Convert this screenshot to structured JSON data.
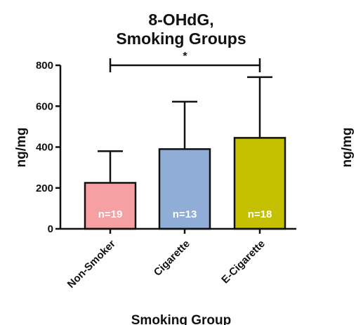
{
  "chart_data": {
    "type": "bar",
    "title_line1": "8-OHdG,",
    "title_line2": "Smoking Groups",
    "xlabel": "Smoking Group",
    "ylabel": "ng/mg",
    "right_partial_ylabel": "ng/mg",
    "ylim": [
      0,
      800
    ],
    "yticks": [
      0,
      200,
      400,
      600,
      800
    ],
    "ytick_labels": [
      "0",
      "200",
      "400",
      "600",
      "800"
    ],
    "categories": [
      "Non-Smoker",
      "Cigarette",
      "E-Cigarette"
    ],
    "values": [
      225,
      390,
      445
    ],
    "error_upper": [
      380,
      622,
      742
    ],
    "bar_labels": [
      "n=19",
      "n=13",
      "n=18"
    ],
    "colors": [
      "#f7a0a4",
      "#8fadd6",
      "#c5c000"
    ],
    "significance": {
      "from": 0,
      "to": 2,
      "label": "*"
    }
  }
}
